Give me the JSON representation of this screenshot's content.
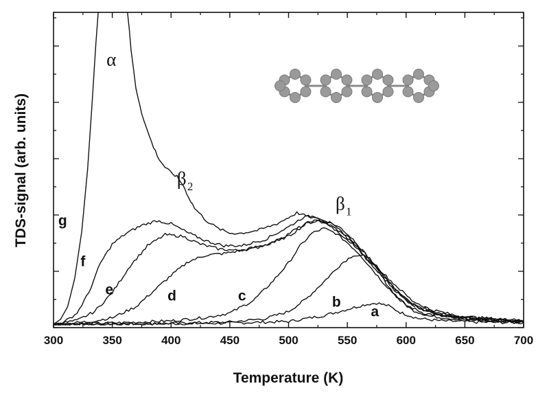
{
  "chart_data": {
    "type": "line",
    "xlabel": "Temperature (K)",
    "ylabel": "TDS-signal (arb. units)",
    "xlim": [
      300,
      700
    ],
    "ylim": [
      0,
      100
    ],
    "x_ticks": [
      "300",
      "350",
      "400",
      "450",
      "500",
      "550",
      "600",
      "650",
      "700"
    ],
    "y_tick_labels": false,
    "grid": false,
    "legend": "none",
    "line_color": "#111111",
    "series": [
      {
        "name": "a",
        "label_at": [
          570,
          3
        ],
        "points": [
          [
            300,
            0.4
          ],
          [
            350,
            0.5
          ],
          [
            400,
            0.6
          ],
          [
            450,
            0.8
          ],
          [
            500,
            1.3
          ],
          [
            530,
            3.2
          ],
          [
            550,
            5.2
          ],
          [
            565,
            6.7
          ],
          [
            575,
            7.2
          ],
          [
            585,
            6.3
          ],
          [
            595,
            4.2
          ],
          [
            610,
            2.3
          ],
          [
            630,
            1.5
          ],
          [
            660,
            1.1
          ],
          [
            700,
            0.9
          ]
        ]
      },
      {
        "name": "b",
        "label_at": [
          537,
          6
        ],
        "points": [
          [
            300,
            0.4
          ],
          [
            400,
            0.7
          ],
          [
            450,
            1.1
          ],
          [
            480,
            2.2
          ],
          [
            500,
            4.5
          ],
          [
            515,
            8.5
          ],
          [
            530,
            14
          ],
          [
            545,
            19.8
          ],
          [
            555,
            22.5
          ],
          [
            565,
            22
          ],
          [
            575,
            18
          ],
          [
            585,
            12.5
          ],
          [
            595,
            8
          ],
          [
            605,
            5
          ],
          [
            620,
            3
          ],
          [
            650,
            1.8
          ],
          [
            700,
            1
          ]
        ]
      },
      {
        "name": "c",
        "label_at": [
          457,
          8
        ],
        "points": [
          [
            300,
            0.4
          ],
          [
            350,
            0.8
          ],
          [
            400,
            1.5
          ],
          [
            430,
            2.6
          ],
          [
            450,
            4
          ],
          [
            470,
            8
          ],
          [
            485,
            13.5
          ],
          [
            500,
            20
          ],
          [
            510,
            25.5
          ],
          [
            520,
            29.5
          ],
          [
            530,
            31
          ],
          [
            540,
            29.5
          ],
          [
            550,
            26.5
          ],
          [
            560,
            23
          ],
          [
            570,
            18.5
          ],
          [
            580,
            14
          ],
          [
            590,
            10
          ],
          [
            600,
            6.5
          ],
          [
            615,
            4
          ],
          [
            640,
            2.3
          ],
          [
            700,
            1.2
          ]
        ]
      },
      {
        "name": "d",
        "label_at": [
          397,
          8
        ],
        "points": [
          [
            300,
            0.4
          ],
          [
            330,
            1.2
          ],
          [
            350,
            2.5
          ],
          [
            370,
            6
          ],
          [
            385,
            11
          ],
          [
            400,
            16
          ],
          [
            415,
            20.5
          ],
          [
            430,
            22.5
          ],
          [
            445,
            23
          ],
          [
            460,
            24
          ],
          [
            480,
            25.8
          ],
          [
            500,
            28.5
          ],
          [
            515,
            32.5
          ],
          [
            525,
            33.5
          ],
          [
            535,
            33
          ],
          [
            545,
            31
          ],
          [
            555,
            27.5
          ],
          [
            565,
            23
          ],
          [
            575,
            18.5
          ],
          [
            585,
            14
          ],
          [
            595,
            10
          ],
          [
            605,
            6.8
          ],
          [
            620,
            4.2
          ],
          [
            645,
            2.4
          ],
          [
            700,
            1.3
          ]
        ]
      },
      {
        "name": "e",
        "label_at": [
          344,
          10
        ],
        "points": [
          [
            300,
            0.4
          ],
          [
            320,
            1.6
          ],
          [
            335,
            4.5
          ],
          [
            350,
            10.5
          ],
          [
            365,
            19
          ],
          [
            380,
            25.5
          ],
          [
            395,
            29
          ],
          [
            410,
            28.5
          ],
          [
            425,
            26
          ],
          [
            440,
            24.5
          ],
          [
            455,
            24
          ],
          [
            470,
            24.5
          ],
          [
            490,
            27
          ],
          [
            505,
            30.5
          ],
          [
            520,
            33.5
          ],
          [
            530,
            33
          ],
          [
            540,
            31
          ],
          [
            550,
            28
          ],
          [
            560,
            24
          ],
          [
            570,
            19.5
          ],
          [
            580,
            15.5
          ],
          [
            590,
            11.5
          ],
          [
            600,
            8
          ],
          [
            615,
            5
          ],
          [
            640,
            2.8
          ],
          [
            700,
            1.4
          ]
        ]
      },
      {
        "name": "f",
        "label_at": [
          323,
          19
        ],
        "points": [
          [
            300,
            0.4
          ],
          [
            310,
            1.3
          ],
          [
            320,
            4
          ],
          [
            330,
            10.5
          ],
          [
            340,
            20
          ],
          [
            350,
            26
          ],
          [
            362,
            29.5
          ],
          [
            375,
            32
          ],
          [
            388,
            33.5
          ],
          [
            400,
            32.5
          ],
          [
            415,
            29.5
          ],
          [
            430,
            27
          ],
          [
            445,
            25.5
          ],
          [
            460,
            25.5
          ],
          [
            480,
            27.5
          ],
          [
            500,
            31.5
          ],
          [
            512,
            34.5
          ],
          [
            522,
            35
          ],
          [
            532,
            33.5
          ],
          [
            545,
            30
          ],
          [
            555,
            27
          ],
          [
            565,
            23
          ],
          [
            575,
            19
          ],
          [
            585,
            15
          ],
          [
            595,
            11.5
          ],
          [
            605,
            8
          ],
          [
            620,
            5.2
          ],
          [
            645,
            3
          ],
          [
            700,
            1.5
          ]
        ]
      },
      {
        "name": "g",
        "label_at": [
          304,
          32
        ],
        "points": [
          [
            300,
            0.4
          ],
          [
            306,
            2
          ],
          [
            312,
            6
          ],
          [
            318,
            15
          ],
          [
            324,
            30
          ],
          [
            329,
            50
          ],
          [
            333,
            72
          ],
          [
            336,
            90
          ],
          [
            338,
            100
          ]
        ],
        "overflow_points": [
          [
            338,
            112
          ],
          [
            350,
            112
          ]
        ]
      },
      {
        "name": "α",
        "sub": "",
        "label_at": [
          345,
          83
        ],
        "points": [
          [
            363,
            100
          ],
          [
            366,
            88
          ],
          [
            370,
            76
          ],
          [
            375,
            68
          ],
          [
            380,
            62
          ],
          [
            385,
            57
          ],
          [
            390,
            53
          ],
          [
            395,
            50.5
          ],
          [
            400,
            48.8
          ],
          [
            405,
            47.5
          ],
          [
            410,
            45
          ],
          [
            415,
            41
          ],
          [
            420,
            37.5
          ],
          [
            430,
            33.5
          ],
          [
            440,
            31
          ],
          [
            450,
            29.5
          ],
          [
            460,
            29.5
          ],
          [
            475,
            30.5
          ],
          [
            490,
            32.5
          ],
          [
            500,
            34.5
          ],
          [
            507,
            36
          ],
          [
            515,
            35
          ],
          [
            525,
            34
          ],
          [
            535,
            32
          ],
          [
            545,
            29
          ],
          [
            555,
            26
          ],
          [
            565,
            22.5
          ],
          [
            575,
            18.5
          ],
          [
            585,
            14
          ],
          [
            595,
            10
          ],
          [
            605,
            7
          ],
          [
            620,
            4.8
          ],
          [
            640,
            3.2
          ],
          [
            660,
            2.3
          ],
          [
            700,
            1.6
          ]
        ],
        "overflow_points": [
          [
            350,
            112
          ],
          [
            363,
            112
          ]
        ]
      }
    ],
    "peak_labels": [
      {
        "text": "α",
        "sub": "",
        "at": [
          345,
          83
        ]
      },
      {
        "text": "β",
        "sub": "2",
        "at": [
          405,
          45
        ]
      },
      {
        "text": "β",
        "sub": "1",
        "at": [
          540,
          37
        ]
      }
    ],
    "inset": {
      "description_icon": "molecule-ring-chain-icon",
      "atom_color": "#9a9a9a",
      "bond_color": "#8a8a8a",
      "rings": 4
    }
  }
}
